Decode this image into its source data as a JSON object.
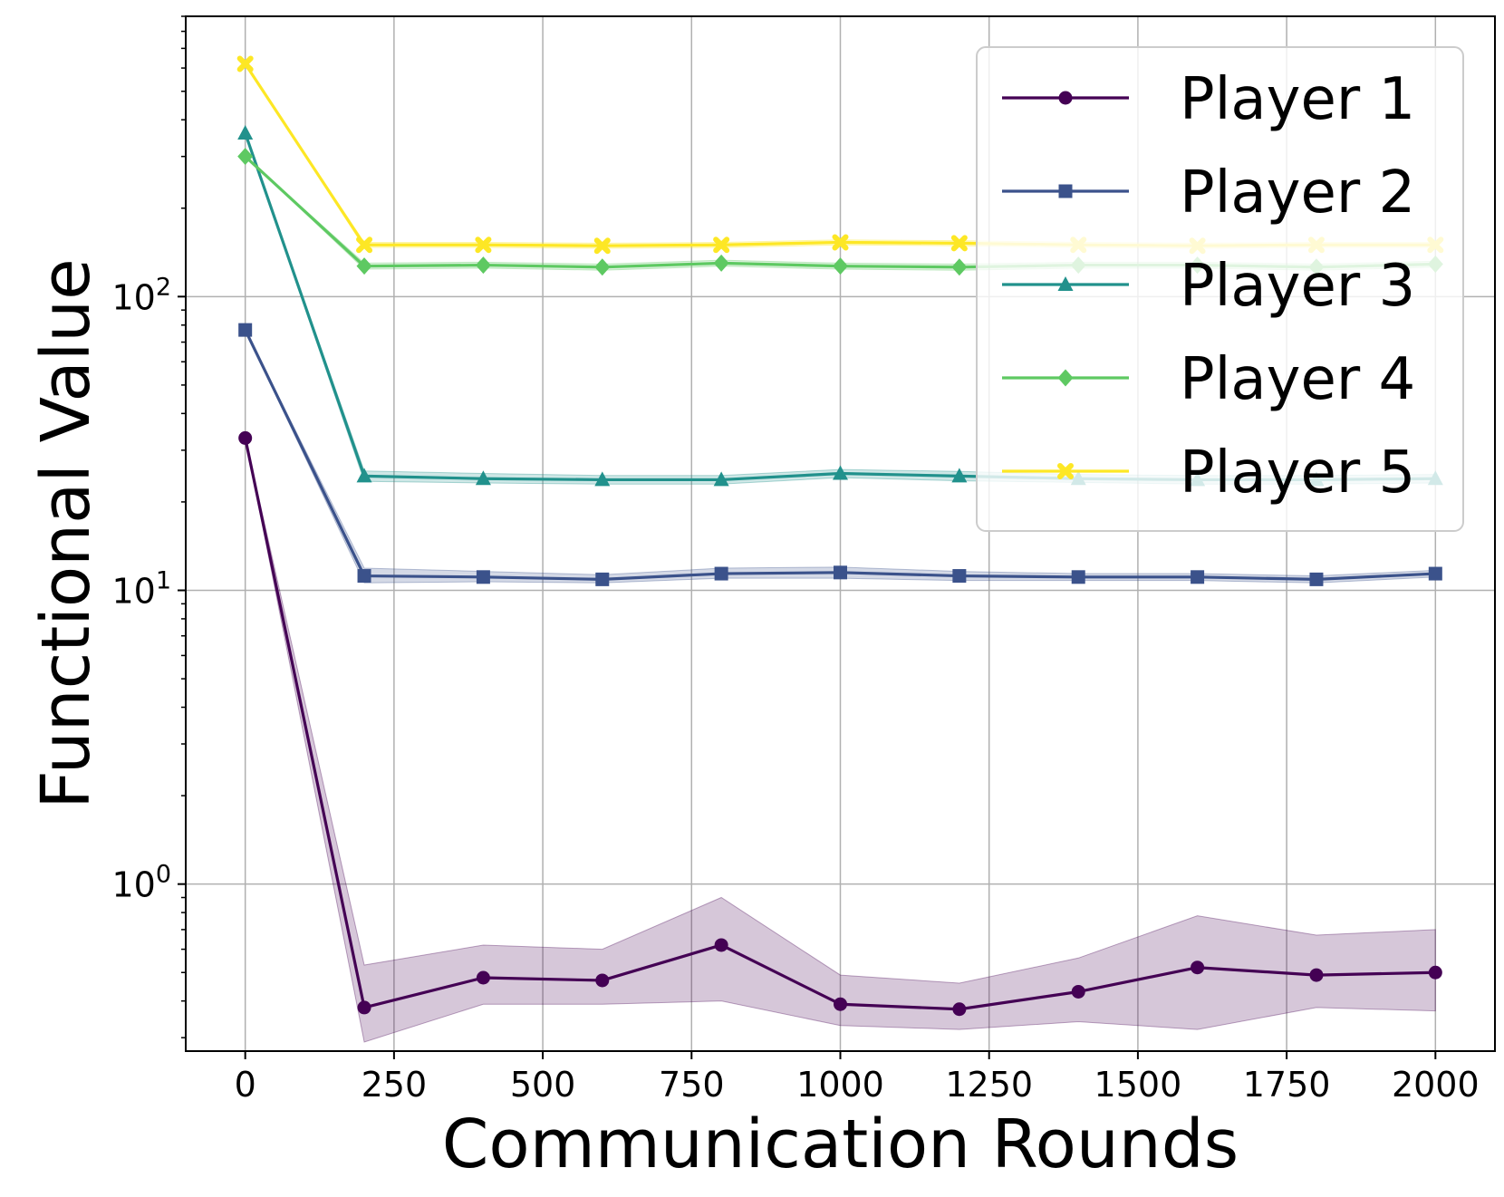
{
  "chart_data": {
    "type": "line",
    "title": "",
    "xlabel": "Communication Rounds",
    "ylabel": "Functional Value",
    "yscale": "log",
    "xlim": [
      -100,
      2100
    ],
    "ylim": [
      0.27,
      900
    ],
    "x_ticks": [
      0,
      250,
      500,
      750,
      1000,
      1250,
      1500,
      1750,
      2000
    ],
    "y_ticks": [
      {
        "value": 1,
        "base": "10",
        "exp": "0"
      },
      {
        "value": 10,
        "base": "10",
        "exp": "1"
      },
      {
        "value": 100,
        "base": "10",
        "exp": "2"
      }
    ],
    "grid": true,
    "legend_position": "upper right",
    "x": [
      0,
      200,
      400,
      600,
      800,
      1000,
      1200,
      1400,
      1600,
      1800,
      2000
    ],
    "series": [
      {
        "name": "Player 1",
        "color": "#440154",
        "marker": "circle",
        "values": [
          33,
          0.38,
          0.48,
          0.47,
          0.62,
          0.39,
          0.375,
          0.43,
          0.52,
          0.49,
          0.5
        ],
        "band_low": [
          33,
          0.29,
          0.39,
          0.39,
          0.4,
          0.33,
          0.32,
          0.34,
          0.32,
          0.38,
          0.37
        ],
        "band_high": [
          33,
          0.53,
          0.62,
          0.6,
          0.9,
          0.49,
          0.46,
          0.56,
          0.78,
          0.67,
          0.7
        ]
      },
      {
        "name": "Player 2",
        "color": "#3b528b",
        "marker": "square",
        "values": [
          77,
          11.2,
          11.1,
          10.9,
          11.4,
          11.5,
          11.2,
          11.1,
          11.1,
          10.9,
          11.4
        ],
        "band_low": [
          77,
          10.6,
          10.7,
          10.6,
          11.0,
          11.0,
          10.8,
          10.8,
          10.8,
          10.6,
          11.1
        ],
        "band_high": [
          77,
          11.9,
          11.6,
          11.3,
          11.9,
          12.0,
          11.6,
          11.4,
          11.4,
          11.2,
          11.7
        ]
      },
      {
        "name": "Player 3",
        "color": "#21918c",
        "marker": "triangle",
        "values": [
          360,
          24.5,
          24.0,
          23.8,
          23.8,
          25.0,
          24.5,
          24.0,
          23.8,
          23.8,
          24.0
        ],
        "band_low": [
          360,
          23.5,
          23.2,
          23.0,
          23.0,
          24.2,
          23.6,
          23.3,
          23.0,
          23.0,
          23.2
        ],
        "band_high": [
          360,
          25.5,
          25.0,
          24.6,
          24.6,
          25.8,
          25.4,
          24.8,
          24.6,
          24.6,
          24.8
        ]
      },
      {
        "name": "Player 4",
        "color": "#5ec962",
        "marker": "diamond",
        "values": [
          300,
          127,
          128,
          126,
          130,
          127,
          126,
          128,
          128,
          126,
          129
        ],
        "band_low": [
          300,
          124,
          125,
          123,
          127,
          124,
          123,
          125,
          125,
          123,
          126
        ],
        "band_high": [
          300,
          130,
          131,
          129,
          133,
          130,
          129,
          131,
          131,
          129,
          132
        ]
      },
      {
        "name": "Player 5",
        "color": "#fde725",
        "marker": "x",
        "values": [
          620,
          150,
          150,
          149,
          150,
          153,
          152,
          150,
          149,
          150,
          150
        ],
        "band_low": [
          620,
          147,
          147,
          146,
          147,
          150,
          149,
          147,
          146,
          147,
          147
        ],
        "band_high": [
          620,
          153,
          153,
          152,
          153,
          156,
          155,
          153,
          152,
          153,
          153
        ]
      }
    ]
  }
}
